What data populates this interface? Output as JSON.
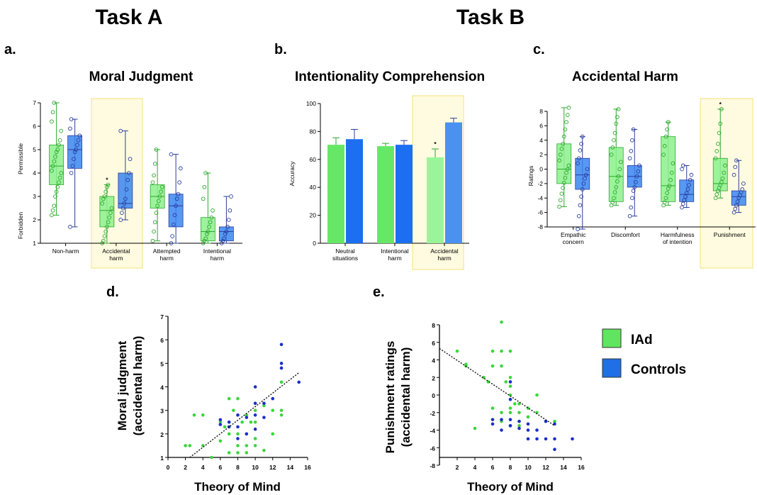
{
  "headers": {
    "task_a": "Task A",
    "task_b": "Task B"
  },
  "legend": {
    "items": [
      {
        "label": "IAd",
        "color": "#5FE55F"
      },
      {
        "label": "Controls",
        "color": "#1F6FE6"
      }
    ]
  },
  "colors": {
    "iad_fill": "#8DF08D",
    "iad_stroke": "#2DA82D",
    "ctrl_fill": "#3A86F0",
    "ctrl_stroke": "#2A3E9E",
    "highlight_bg": "#FFFBE0",
    "highlight_border": "#F5E27A",
    "sig": "#000000"
  },
  "chart_data": [
    {
      "panel": "a.",
      "type": "box",
      "title": "Moral Judgment",
      "ylim": [
        1,
        7
      ],
      "yticks": [
        "1",
        "2",
        "3",
        "4",
        "5",
        "6",
        "7"
      ],
      "ylabel_top": "Permissible",
      "ylabel_bottom": "Forbidden",
      "highlight": "Accidental harm",
      "categories": [
        "Non-harm",
        "Accidental harm",
        "Attempted harm",
        "Intentional harm"
      ],
      "groups": [
        {
          "category": "Non-harm",
          "series": "IAd",
          "min": 2.2,
          "q1": 3.5,
          "median": 4.3,
          "q3": 5.2,
          "max": 7.0,
          "points": [
            2.2,
            2.4,
            2.6,
            3.0,
            3.2,
            3.4,
            3.6,
            3.8,
            4.0,
            4.1,
            4.3,
            4.5,
            4.7,
            4.9,
            5.0,
            5.2,
            5.4,
            5.8,
            6.2,
            6.6,
            7.0
          ]
        },
        {
          "category": "Non-harm",
          "series": "Controls",
          "min": 1.7,
          "q1": 4.2,
          "median": 5.0,
          "q3": 5.6,
          "max": 6.3,
          "points": [
            1.7,
            4.0,
            4.3,
            4.6,
            4.9,
            5.0,
            5.2,
            5.4,
            5.6,
            5.9,
            6.3
          ]
        },
        {
          "category": "Accidental harm",
          "series": "IAd",
          "min": 1.0,
          "q1": 1.7,
          "median": 2.4,
          "q3": 3.0,
          "max": 3.5,
          "sig": "*",
          "points": [
            1.0,
            1.1,
            1.3,
            1.5,
            1.7,
            1.9,
            2.1,
            2.3,
            2.5,
            2.7,
            2.9,
            3.0,
            3.2,
            3.4,
            3.5
          ]
        },
        {
          "category": "Accidental harm",
          "series": "Controls",
          "min": 2.0,
          "q1": 2.5,
          "median": 2.7,
          "q3": 4.0,
          "max": 5.8,
          "points": [
            2.0,
            2.3,
            2.5,
            2.7,
            2.9,
            3.3,
            3.7,
            4.0,
            4.6,
            5.8
          ]
        },
        {
          "category": "Attempted harm",
          "series": "IAd",
          "min": 1.1,
          "q1": 2.5,
          "median": 3.0,
          "q3": 3.5,
          "max": 5.0,
          "points": [
            1.1,
            1.5,
            1.9,
            2.3,
            2.6,
            2.8,
            3.0,
            3.2,
            3.4,
            3.6,
            3.9,
            4.4,
            5.0
          ]
        },
        {
          "category": "Attempted harm",
          "series": "Controls",
          "min": 1.0,
          "q1": 1.7,
          "median": 2.6,
          "q3": 3.1,
          "max": 4.8,
          "points": [
            1.0,
            1.3,
            1.8,
            2.2,
            2.6,
            2.9,
            3.1,
            3.6,
            4.2,
            4.8
          ]
        },
        {
          "category": "Intentional harm",
          "series": "IAd",
          "min": 1.0,
          "q1": 1.1,
          "median": 1.5,
          "q3": 2.1,
          "max": 4.0,
          "points": [
            1.0,
            1.1,
            1.2,
            1.4,
            1.5,
            1.7,
            1.9,
            2.1,
            2.4,
            2.9,
            3.4,
            4.0
          ]
        },
        {
          "category": "Intentional harm",
          "series": "Controls",
          "min": 1.0,
          "q1": 1.1,
          "median": 1.5,
          "q3": 1.7,
          "max": 3.0,
          "points": [
            1.0,
            1.1,
            1.2,
            1.4,
            1.5,
            1.7,
            2.0,
            2.4,
            3.0
          ]
        }
      ]
    },
    {
      "panel": "b.",
      "type": "bar",
      "title": "Intentionality Comprehension",
      "ylabel": "Accuracy",
      "ylim": [
        0,
        100
      ],
      "yticks": [
        "0",
        "20",
        "40",
        "60",
        "80",
        "100"
      ],
      "highlight": "Accidental harm",
      "categories": [
        "Neutral situations",
        "Intentional harm",
        "Accidental harm"
      ],
      "series": [
        {
          "name": "IAd",
          "values": [
            70.5,
            69.5,
            61.5
          ],
          "errors": [
            5,
            2,
            6
          ]
        },
        {
          "name": "Controls",
          "values": [
            74.5,
            70.5,
            86.5
          ],
          "errors": [
            7,
            3,
            3
          ]
        }
      ],
      "sig_marks": [
        {
          "category": "Accidental harm",
          "series": "IAd",
          "mark": "*"
        }
      ]
    },
    {
      "panel": "c.",
      "type": "box",
      "title": "Accidental Harm",
      "ylabel": "Ratings",
      "ylim": [
        -8,
        8
      ],
      "yticks": [
        "-8",
        "-6",
        "-4",
        "-2",
        "0",
        "2",
        "4",
        "6",
        "8"
      ],
      "highlight": "Punishment",
      "categories": [
        "Empathic concern",
        "Discomfort",
        "Harmfulness of intention",
        "Punishment"
      ],
      "groups": [
        {
          "category": "Empathic concern",
          "series": "IAd",
          "min": -5.2,
          "q1": -2.0,
          "median": 0.0,
          "q3": 3.5,
          "max": 8.5,
          "points": [
            -5.2,
            -4.3,
            -3.4,
            -2.6,
            -1.9,
            -1.2,
            -0.5,
            0.0,
            0.5,
            1.2,
            2.0,
            2.8,
            3.5,
            4.5,
            5.5,
            6.5,
            7.5,
            8.5
          ]
        },
        {
          "category": "Empathic concern",
          "series": "Controls",
          "min": -8.3,
          "q1": -2.8,
          "median": -0.8,
          "q3": 1.5,
          "max": 4.5,
          "points": [
            -8.3,
            -6.5,
            -5.0,
            -3.8,
            -2.8,
            -2.0,
            -1.3,
            -0.8,
            0.0,
            0.8,
            1.5,
            2.6,
            3.5,
            4.5
          ]
        },
        {
          "category": "Discomfort",
          "series": "IAd",
          "min": -5.0,
          "q1": -4.5,
          "median": -1.0,
          "q3": 3.0,
          "max": 8.3,
          "points": [
            -5.0,
            -4.6,
            -4.0,
            -3.2,
            -2.5,
            -1.7,
            -1.0,
            0.0,
            1.0,
            2.0,
            3.0,
            4.0,
            5.0,
            6.3,
            7.2,
            8.3
          ]
        },
        {
          "category": "Discomfort",
          "series": "Controls",
          "min": -6.5,
          "q1": -2.5,
          "median": -1.0,
          "q3": 0.5,
          "max": 5.5,
          "points": [
            -6.5,
            -5.3,
            -4.0,
            -3.0,
            -2.5,
            -1.8,
            -1.0,
            -0.3,
            0.5,
            1.5,
            2.5,
            4.0,
            5.5
          ]
        },
        {
          "category": "Harmfulness of intention",
          "series": "IAd",
          "min": -5.0,
          "q1": -4.5,
          "median": -2.3,
          "q3": 4.5,
          "max": 6.5,
          "points": [
            -5.0,
            -4.6,
            -4.0,
            -3.3,
            -2.7,
            -2.3,
            -1.5,
            -0.5,
            0.8,
            2.0,
            3.2,
            4.5,
            5.5,
            6.5
          ]
        },
        {
          "category": "Harmfulness of intention",
          "series": "Controls",
          "min": -5.3,
          "q1": -4.5,
          "median": -3.5,
          "q3": -1.5,
          "max": 0.5,
          "points": [
            -5.3,
            -4.8,
            -4.3,
            -3.8,
            -3.3,
            -2.8,
            -2.2,
            -1.5,
            -0.8,
            0.0,
            0.5
          ]
        },
        {
          "category": "Punishment",
          "series": "IAd",
          "min": -4.0,
          "q1": -3.0,
          "median": -2.0,
          "q3": 1.5,
          "max": 8.3,
          "sig": "*",
          "points": [
            -4.0,
            -3.5,
            -3.0,
            -2.6,
            -2.2,
            -1.8,
            -1.3,
            -0.5,
            0.5,
            1.5,
            2.5,
            3.5,
            5.0,
            6.3,
            8.3
          ]
        },
        {
          "category": "Punishment",
          "series": "Controls",
          "min": -6.0,
          "q1": -5.0,
          "median": -3.8,
          "q3": -3.0,
          "max": 1.2,
          "points": [
            -6.0,
            -5.5,
            -5.0,
            -4.5,
            -4.0,
            -3.6,
            -3.2,
            -2.8,
            -2.0,
            -0.8,
            0.3,
            1.2
          ]
        }
      ]
    },
    {
      "panel": "d.",
      "type": "scatter",
      "xlabel": "Theory of Mind",
      "ylabel": "Moral judgment\n(accidental harm)",
      "xlim": [
        0,
        16
      ],
      "ylim": [
        1,
        7
      ],
      "xticks": [
        "0",
        "2",
        "4",
        "6",
        "8",
        "10",
        "12",
        "14",
        "16"
      ],
      "yticks": [
        "1",
        "2",
        "3",
        "4",
        "5",
        "6",
        "7"
      ],
      "trendline": {
        "x": [
          2.5,
          15
        ],
        "y": [
          1.0,
          4.6
        ]
      },
      "series": [
        {
          "name": "IAd",
          "points": [
            [
              2,
              1.5
            ],
            [
              2.5,
              1.5
            ],
            [
              3,
              2.8
            ],
            [
              4,
              2.8
            ],
            [
              4,
              1.5
            ],
            [
              5,
              1.0
            ],
            [
              6,
              2.5
            ],
            [
              6,
              1.7
            ],
            [
              6.5,
              2.3
            ],
            [
              7,
              3.5
            ],
            [
              7,
              2.5
            ],
            [
              7,
              2.0
            ],
            [
              7,
              1.2
            ],
            [
              7.5,
              3.0
            ],
            [
              8,
              3.5
            ],
            [
              8,
              2.8
            ],
            [
              8,
              2.0
            ],
            [
              8,
              1.5
            ],
            [
              8,
              1.2
            ],
            [
              8.5,
              2.5
            ],
            [
              9,
              2.8
            ],
            [
              9,
              2.0
            ],
            [
              9,
              1.5
            ],
            [
              9,
              1.2
            ],
            [
              9.5,
              2.5
            ],
            [
              10,
              3.0
            ],
            [
              10,
              2.5
            ],
            [
              10,
              1.8
            ],
            [
              10,
              1.5
            ],
            [
              11,
              3.2
            ],
            [
              11,
              1.3
            ],
            [
              12,
              3.0
            ],
            [
              12,
              2.0
            ],
            [
              13,
              3.0
            ],
            [
              13,
              2.8
            ],
            [
              13,
              4.2
            ]
          ]
        },
        {
          "name": "Controls",
          "points": [
            [
              6,
              2.6
            ],
            [
              6,
              2.4
            ],
            [
              7,
              2.5
            ],
            [
              7,
              2.3
            ],
            [
              8,
              2.8
            ],
            [
              8,
              2.3
            ],
            [
              8,
              1.8
            ],
            [
              9,
              2.7
            ],
            [
              9,
              2.0
            ],
            [
              10,
              4.0
            ],
            [
              10,
              3.3
            ],
            [
              10,
              2.8
            ],
            [
              10,
              2.2
            ],
            [
              11,
              3.3
            ],
            [
              11,
              2.7
            ],
            [
              12,
              3.5
            ],
            [
              13,
              5.8
            ],
            [
              13,
              5.0
            ],
            [
              13,
              4.8
            ],
            [
              15,
              4.2
            ]
          ]
        }
      ]
    },
    {
      "panel": "e.",
      "type": "scatter",
      "xlabel": "Theory of Mind",
      "ylabel": "Punishment ratings\n(accidental harm)",
      "xlim": [
        0,
        16
      ],
      "ylim": [
        -8,
        8
      ],
      "xticks": [
        "2",
        "4",
        "6",
        "8",
        "10",
        "12",
        "14",
        "16"
      ],
      "yticks": [
        "-8",
        "-6",
        "-4",
        "-2",
        "0",
        "2",
        "4",
        "6",
        "8"
      ],
      "trendline": {
        "x": [
          0,
          13
        ],
        "y": [
          5.3,
          -3.5
        ]
      },
      "series": [
        {
          "name": "IAd",
          "points": [
            [
              2,
              5.0
            ],
            [
              3,
              3.5
            ],
            [
              3,
              3.3
            ],
            [
              4,
              -3.8
            ],
            [
              5,
              2.0
            ],
            [
              5.5,
              1.5
            ],
            [
              6,
              5.0
            ],
            [
              6,
              3.3
            ],
            [
              6,
              -1.5
            ],
            [
              7,
              8.3
            ],
            [
              7,
              5.0
            ],
            [
              7,
              3.3
            ],
            [
              7,
              -2.0
            ],
            [
              7,
              -3.0
            ],
            [
              7.5,
              1.5
            ],
            [
              8,
              5.0
            ],
            [
              8,
              2.0
            ],
            [
              8,
              1.0
            ],
            [
              8,
              0.0
            ],
            [
              8,
              -1.5
            ],
            [
              8,
              -2.0
            ],
            [
              8,
              -3.5
            ],
            [
              8.5,
              -1.0
            ],
            [
              9,
              -1.0
            ],
            [
              9,
              -2.0
            ],
            [
              9,
              -3.0
            ],
            [
              9,
              -3.5
            ],
            [
              10,
              -1.5
            ],
            [
              10,
              -2.5
            ],
            [
              11,
              0.0
            ],
            [
              11,
              -2.0
            ],
            [
              12,
              -3.0
            ],
            [
              13,
              -3.0
            ]
          ]
        },
        {
          "name": "Controls",
          "points": [
            [
              6,
              -2.8
            ],
            [
              6,
              -3.3
            ],
            [
              7,
              -4.0
            ],
            [
              7,
              -2.8
            ],
            [
              8,
              1.5
            ],
            [
              8,
              -0.5
            ],
            [
              8,
              -2.8
            ],
            [
              8,
              -3.5
            ],
            [
              9,
              -3.0
            ],
            [
              9,
              -3.8
            ],
            [
              10,
              -3.3
            ],
            [
              10,
              -5.0
            ],
            [
              10,
              -4.0
            ],
            [
              11,
              -5.0
            ],
            [
              11,
              -4.0
            ],
            [
              12,
              -5.0
            ],
            [
              12,
              -3.0
            ],
            [
              13,
              -3.3
            ],
            [
              13,
              -5.0
            ],
            [
              13,
              -6.2
            ],
            [
              15,
              -5.0
            ]
          ]
        }
      ]
    }
  ]
}
